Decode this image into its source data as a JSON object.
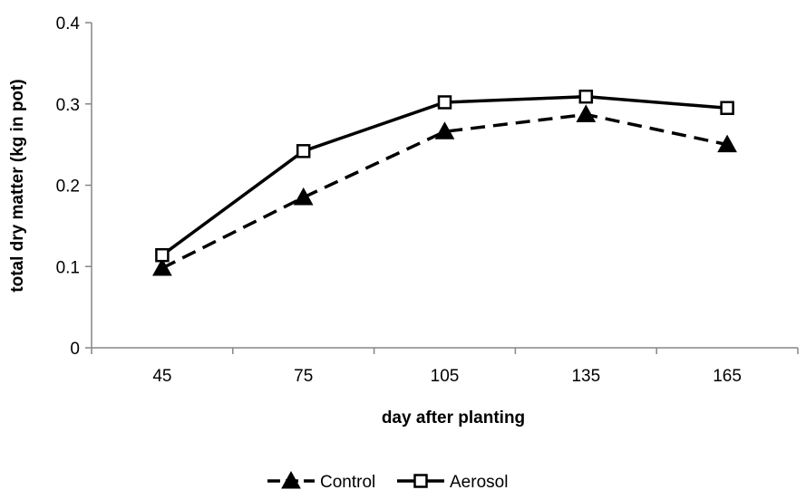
{
  "chart_data": {
    "type": "line",
    "title": "",
    "xlabel": "day after planting",
    "ylabel": "total dry matter (kg in pot)",
    "categories": [
      "45",
      "75",
      "105",
      "135",
      "165"
    ],
    "ylim": [
      0,
      0.4
    ],
    "yticks": [
      "0",
      "0.1",
      "0.2",
      "0.3",
      "0.4"
    ],
    "grid": false,
    "legend_position": "bottom",
    "series": [
      {
        "name": "Control",
        "values": [
          0.098,
          0.185,
          0.266,
          0.287,
          0.25
        ],
        "color": "#000000",
        "line_style": "dashed",
        "marker": "filled-triangle"
      },
      {
        "name": "Aerosol",
        "values": [
          0.114,
          0.242,
          0.302,
          0.309,
          0.295
        ],
        "color": "#000000",
        "line_style": "solid",
        "marker": "open-square"
      }
    ]
  }
}
